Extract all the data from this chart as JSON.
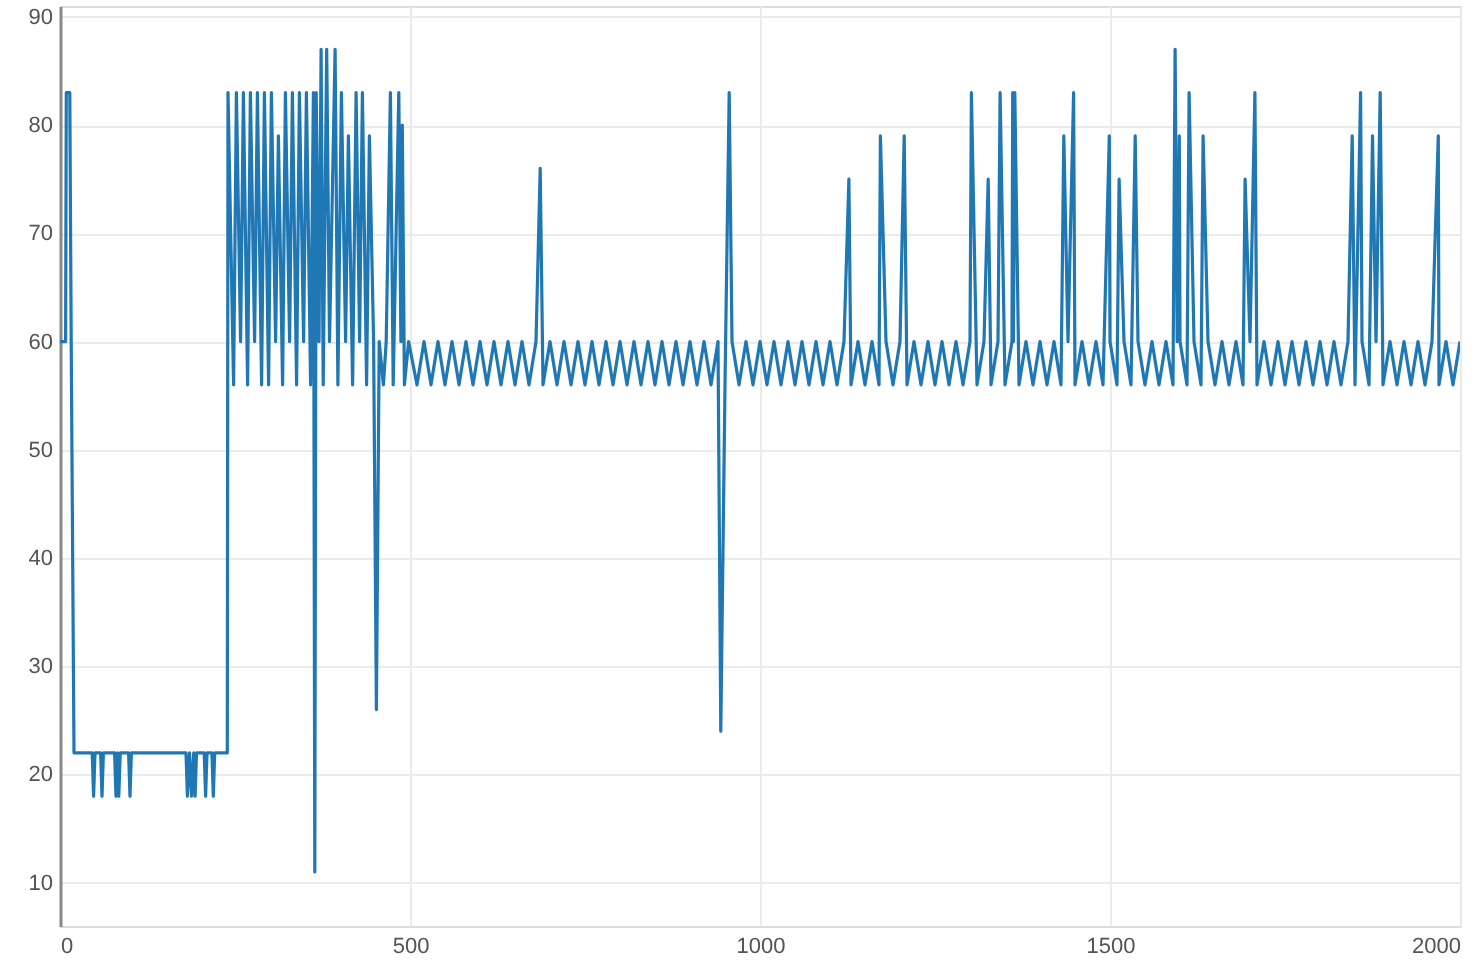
{
  "chart_data": {
    "type": "line",
    "xlim": [
      0,
      2000
    ],
    "xticks": [
      0,
      500,
      1000,
      1500,
      2000
    ],
    "ylim": [
      6,
      91
    ],
    "yticks": [
      10,
      20,
      30,
      40,
      50,
      60,
      70,
      80,
      90
    ],
    "grid": true,
    "marker": "none",
    "line_style": "solid",
    "series": [
      {
        "color": "#1f77b4",
        "x": [
          0,
          8,
          9,
          14,
          16,
          20,
          46,
          48,
          50,
          58,
          60,
          62,
          78,
          80,
          82,
          84,
          86,
          98,
          100,
          102,
          180,
          182,
          185,
          188,
          191,
          193,
          195,
          206,
          208,
          210,
          217,
          219,
          221,
          239,
          240,
          248,
          252,
          258,
          262,
          268,
          272,
          278,
          282,
          288,
          292,
          298,
          302,
          308,
          312,
          318,
          322,
          328,
          332,
          338,
          342,
          348,
          352,
          358,
          362,
          364,
          366,
          370,
          373,
          376,
          381,
          385,
          393,
          397,
          402,
          408,
          412,
          418,
          423,
          428,
          432,
          438,
          442,
          448,
          452,
          456,
          462,
          466,
          472,
          476,
          484,
          487,
          489,
          492,
          498,
          510,
          520,
          530,
          540,
          550,
          560,
          570,
          580,
          590,
          600,
          610,
          620,
          630,
          640,
          650,
          660,
          670,
          680,
          686,
          690,
          700,
          710,
          720,
          730,
          740,
          750,
          760,
          770,
          780,
          790,
          800,
          810,
          820,
          830,
          840,
          850,
          860,
          870,
          880,
          890,
          900,
          910,
          920,
          930,
          940,
          944,
          950,
          956,
          960,
          970,
          980,
          990,
          1000,
          1010,
          1020,
          1030,
          1040,
          1050,
          1060,
          1070,
          1080,
          1090,
          1100,
          1110,
          1120,
          1127,
          1130,
          1140,
          1150,
          1160,
          1170,
          1172,
          1180,
          1190,
          1200,
          1206,
          1210,
          1220,
          1230,
          1240,
          1250,
          1260,
          1270,
          1280,
          1290,
          1300,
          1302,
          1310,
          1320,
          1326,
          1330,
          1340,
          1343,
          1350,
          1360,
          1361,
          1362,
          1364,
          1370,
          1380,
          1390,
          1400,
          1410,
          1420,
          1430,
          1434,
          1440,
          1448,
          1450,
          1460,
          1470,
          1480,
          1490,
          1499,
          1500,
          1510,
          1513,
          1520,
          1530,
          1536,
          1540,
          1550,
          1560,
          1570,
          1580,
          1590,
          1593,
          1596,
          1599,
          1600,
          1610,
          1613,
          1620,
          1630,
          1633,
          1640,
          1650,
          1660,
          1670,
          1680,
          1690,
          1693,
          1700,
          1707,
          1710,
          1720,
          1730,
          1740,
          1750,
          1760,
          1770,
          1780,
          1790,
          1800,
          1810,
          1820,
          1830,
          1840,
          1846,
          1850,
          1858,
          1860,
          1870,
          1875,
          1880,
          1886,
          1890,
          1900,
          1910,
          1920,
          1930,
          1940,
          1950,
          1960,
          1969,
          1970,
          1980,
          1990,
          2000
        ],
        "values": [
          60,
          60,
          83,
          83,
          60,
          22,
          22,
          18,
          22,
          22,
          18,
          22,
          22,
          18,
          22,
          18,
          22,
          22,
          18,
          22,
          22,
          18,
          22,
          18,
          22,
          18,
          22,
          22,
          18,
          22,
          22,
          18,
          22,
          22,
          83,
          56,
          83,
          60,
          83,
          56,
          83,
          60,
          83,
          56,
          83,
          56,
          83,
          60,
          79,
          56,
          83,
          60,
          83,
          56,
          83,
          60,
          83,
          56,
          83,
          11,
          83,
          60,
          87,
          56,
          87,
          60,
          87,
          56,
          83,
          60,
          79,
          56,
          83,
          60,
          83,
          56,
          79,
          60,
          26,
          60,
          56,
          60,
          83,
          56,
          83,
          60,
          80,
          56,
          60,
          56,
          60,
          56,
          60,
          56,
          60,
          56,
          60,
          56,
          60,
          56,
          60,
          56,
          60,
          56,
          60,
          56,
          60,
          76,
          56,
          60,
          56,
          60,
          56,
          60,
          56,
          60,
          56,
          60,
          56,
          60,
          56,
          60,
          56,
          60,
          56,
          60,
          56,
          60,
          56,
          60,
          56,
          60,
          56,
          60,
          24,
          56,
          83,
          60,
          56,
          60,
          56,
          60,
          56,
          60,
          56,
          60,
          56,
          60,
          56,
          60,
          56,
          60,
          56,
          60,
          75,
          56,
          60,
          56,
          60,
          56,
          79,
          60,
          56,
          60,
          79,
          56,
          60,
          56,
          60,
          56,
          60,
          56,
          60,
          56,
          60,
          83,
          56,
          60,
          75,
          56,
          60,
          83,
          56,
          60,
          83,
          60,
          83,
          56,
          60,
          56,
          60,
          56,
          60,
          56,
          79,
          60,
          83,
          56,
          60,
          56,
          60,
          56,
          79,
          60,
          56,
          75,
          60,
          56,
          79,
          60,
          56,
          60,
          56,
          60,
          56,
          87,
          60,
          79,
          60,
          56,
          83,
          60,
          56,
          79,
          60,
          56,
          60,
          56,
          60,
          56,
          75,
          60,
          83,
          56,
          60,
          56,
          60,
          56,
          60,
          56,
          60,
          56,
          60,
          56,
          60,
          56,
          60,
          79,
          56,
          83,
          60,
          56,
          79,
          60,
          83,
          56,
          60,
          56,
          60,
          56,
          60,
          56,
          60,
          79,
          56,
          60,
          56,
          60
        ]
      }
    ]
  }
}
